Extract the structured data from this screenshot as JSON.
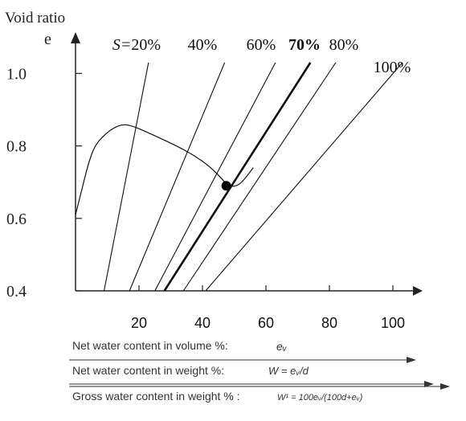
{
  "chart_data": {
    "type": "line",
    "title": "",
    "ylabel": "Void ratio",
    "ylabel_symbol": "e",
    "x_ticks": [
      "20",
      "40",
      "60",
      "80",
      "100"
    ],
    "y_ticks": [
      "1.0",
      "0.8",
      "0.6",
      "0.4"
    ],
    "x_tick_values": [
      20,
      40,
      60,
      80,
      100
    ],
    "y_tick_values": [
      1.0,
      0.8,
      0.6,
      0.4
    ],
    "xlim": [
      0,
      110
    ],
    "ylim": [
      0.4,
      1.1
    ],
    "grid": false,
    "saturation_prefix": "S=",
    "saturation_lines": [
      {
        "name": "20%",
        "label": "20%",
        "bold": false,
        "x_at_y_0_4": 9,
        "x_at_y_1_03": 23
      },
      {
        "name": "40%",
        "label": "40%",
        "bold": false,
        "x_at_y_0_4": 17,
        "x_at_y_1_03": 47
      },
      {
        "name": "60%",
        "label": "60%",
        "bold": false,
        "x_at_y_0_4": 25,
        "x_at_y_1_03": 63
      },
      {
        "name": "70%",
        "label": "70%",
        "bold": true,
        "x_at_y_0_4": 28,
        "x_at_y_1_03": 74
      },
      {
        "name": "80%",
        "label": "80%",
        "bold": false,
        "x_at_y_0_4": 34,
        "x_at_y_1_03": 82
      },
      {
        "name": "100%",
        "label": "100%",
        "bold": false,
        "x_at_y_0_4": 41,
        "x_at_y_1_03": 103
      }
    ],
    "compaction_curve": {
      "x": [
        0,
        2,
        4,
        6,
        9,
        12,
        15,
        18,
        22,
        27,
        33,
        38,
        42,
        45,
        47.5,
        49,
        51,
        53,
        56
      ],
      "y": [
        0.61,
        0.68,
        0.75,
        0.8,
        0.83,
        0.85,
        0.86,
        0.855,
        0.84,
        0.82,
        0.795,
        0.77,
        0.745,
        0.72,
        0.695,
        0.688,
        0.69,
        0.705,
        0.74
      ]
    },
    "marked_point": {
      "x": 47.5,
      "y": 0.69
    }
  },
  "axes_notes": [
    {
      "text": "Net water content in volume %: ",
      "symbol": "eᵥ"
    },
    {
      "text": "Net water content in weight %: ",
      "symbol": "W = eᵥ/d"
    },
    {
      "text": "Gross water content in weight % : ",
      "symbol": "W¹ = 100eᵥ/(100d+eᵥ)"
    }
  ]
}
